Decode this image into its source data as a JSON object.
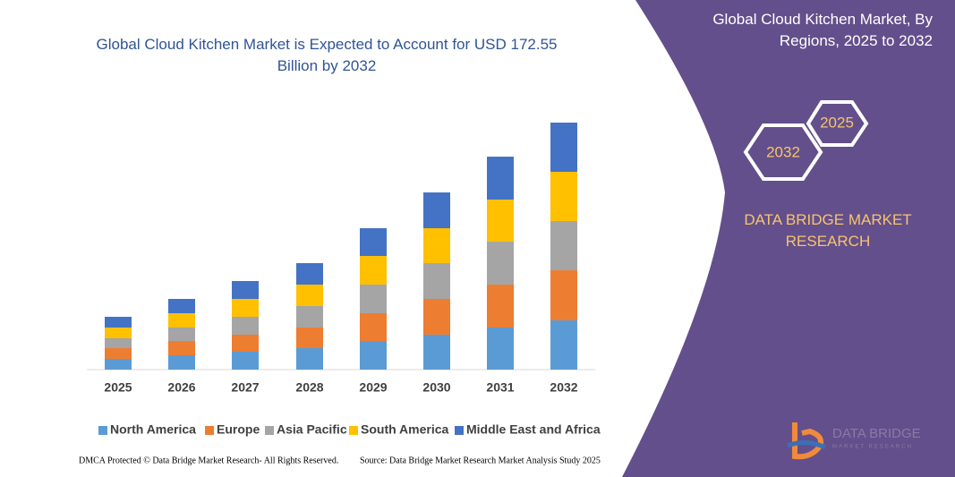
{
  "chart_data": {
    "type": "stacked-bar",
    "title": "Global Cloud Kitchen Market is Expected to Account for USD 172.55 Billion by 2032",
    "categories": [
      "2025",
      "2026",
      "2027",
      "2028",
      "2029",
      "2030",
      "2031",
      "2032"
    ],
    "series": [
      {
        "name": "North America",
        "color": "#5b9bd5",
        "values": [
          7.5,
          10,
          12.5,
          15,
          20,
          24.4,
          29.4,
          34.4
        ]
      },
      {
        "name": "Europe",
        "color": "#ed7d31",
        "values": [
          7.5,
          10,
          11.9,
          14.4,
          19.4,
          25,
          30,
          35
        ]
      },
      {
        "name": "Asia Pacific",
        "color": "#a5a5a5",
        "values": [
          6.9,
          9.4,
          12.5,
          15,
          20,
          25,
          30,
          34.4
        ]
      },
      {
        "name": "South America",
        "color": "#ffc000",
        "values": [
          7.5,
          10,
          12.5,
          15,
          20,
          24.4,
          29.4,
          34.4
        ]
      },
      {
        "name": "Middle East and Africa",
        "color": "#4472c4",
        "values": [
          7.5,
          10,
          12.5,
          15,
          19.4,
          25,
          30,
          34.4
        ]
      }
    ]
  },
  "panel": {
    "title": "Global Cloud Kitchen Market, By Regions, 2025 to 2032",
    "year_start": "2025",
    "year_end": "2032",
    "brand": "DATA BRIDGE MARKET RESEARCH",
    "logo_name": "DATA BRIDGE",
    "logo_sub": "MARKET RESEARCH"
  },
  "footer": {
    "left": "DMCA Protected © Data Bridge Market Research- All Rights Reserved.",
    "right": "Source: Data Bridge Market Research Market Analysis Study 2025"
  }
}
